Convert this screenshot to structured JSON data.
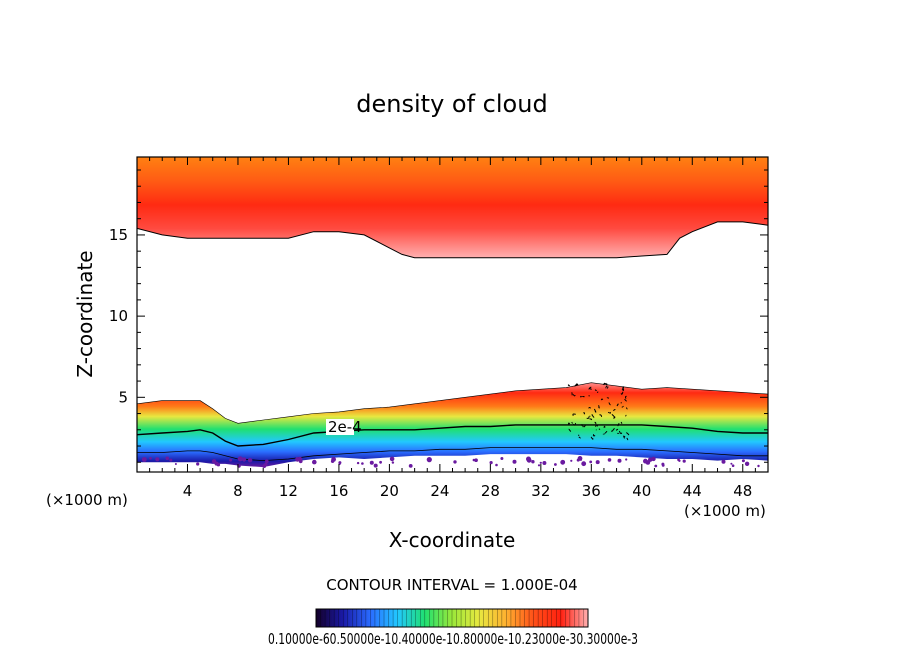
{
  "chart_data": {
    "type": "heatmap",
    "title": "density of cloud",
    "xlabel": "X-coordinate",
    "ylabel": "Z-coordinate",
    "x_unit": "(×1000 m)",
    "z_unit": "(×1000 m)",
    "xlim": [
      0,
      50
    ],
    "ylim": [
      0.4,
      19.8
    ],
    "x_ticks": [
      4,
      8,
      12,
      16,
      20,
      24,
      28,
      32,
      36,
      40,
      44,
      48
    ],
    "y_ticks": [
      5,
      10,
      15
    ],
    "contour_interval_text": "CONTOUR INTERVAL = 1.000E-04",
    "contour_label": "2e-4",
    "colorbar_labels_text": "0.10000e-60.50000e-10.40000e-10.80000e-10.23000e-30.30000e-3",
    "colorbar_stops": [
      "#140028",
      "#1a1aa8",
      "#2a6cff",
      "#22c8ff",
      "#20e070",
      "#9ae83a",
      "#e8e840",
      "#ffb030",
      "#ff5018",
      "#ff2010",
      "#ffb0b0"
    ],
    "upper_layer": {
      "base_x": [
        0,
        2,
        4,
        6,
        8,
        10,
        12,
        14,
        16,
        18,
        20,
        21,
        22,
        24,
        26,
        28,
        30,
        32,
        34,
        36,
        38,
        40,
        42,
        43,
        44,
        46,
        48,
        50
      ],
      "base_z": [
        15.4,
        15.0,
        14.8,
        14.8,
        14.8,
        14.8,
        14.8,
        15.2,
        15.2,
        15.0,
        14.2,
        13.8,
        13.6,
        13.6,
        13.6,
        13.6,
        13.6,
        13.6,
        13.6,
        13.6,
        13.6,
        13.7,
        13.8,
        14.8,
        15.2,
        15.8,
        15.8,
        15.6
      ],
      "top_z": 19.8
    },
    "lower_layer": {
      "x": [
        0,
        2,
        4,
        5,
        6,
        7,
        8,
        10,
        12,
        14,
        16,
        18,
        20,
        22,
        24,
        26,
        28,
        30,
        32,
        34,
        36,
        38,
        40,
        42,
        44,
        46,
        48,
        50
      ],
      "top_z": [
        4.6,
        4.8,
        4.8,
        4.8,
        4.3,
        3.7,
        3.4,
        3.6,
        3.8,
        4.0,
        4.1,
        4.3,
        4.4,
        4.6,
        4.8,
        5.0,
        5.2,
        5.4,
        5.5,
        5.6,
        5.9,
        5.7,
        5.5,
        5.6,
        5.5,
        5.4,
        5.3,
        5.2
      ],
      "contour_2e4_z": [
        2.7,
        2.8,
        2.9,
        3.0,
        2.8,
        2.3,
        2.0,
        2.1,
        2.4,
        2.8,
        2.9,
        3.0,
        3.0,
        3.0,
        3.1,
        3.2,
        3.2,
        3.3,
        3.3,
        3.3,
        3.3,
        3.3,
        3.3,
        3.2,
        3.1,
        2.9,
        2.8,
        2.8
      ],
      "inner_contour_z": [
        1.6,
        1.6,
        1.7,
        1.7,
        1.6,
        1.4,
        1.2,
        1.1,
        1.2,
        1.4,
        1.5,
        1.6,
        1.7,
        1.7,
        1.8,
        1.8,
        1.9,
        1.9,
        1.9,
        1.9,
        1.9,
        1.8,
        1.8,
        1.7,
        1.6,
        1.5,
        1.4,
        1.4
      ],
      "bottom_z": [
        1.0,
        1.0,
        1.0,
        1.0,
        0.9,
        0.9,
        0.8,
        0.7,
        1.0,
        1.2,
        1.3,
        1.2,
        1.3,
        1.4,
        1.4,
        1.4,
        1.5,
        1.5,
        1.5,
        1.5,
        1.4,
        1.4,
        1.3,
        1.2,
        1.2,
        1.1,
        1.2,
        1.1
      ]
    },
    "grid": false,
    "legend": "bottom"
  }
}
